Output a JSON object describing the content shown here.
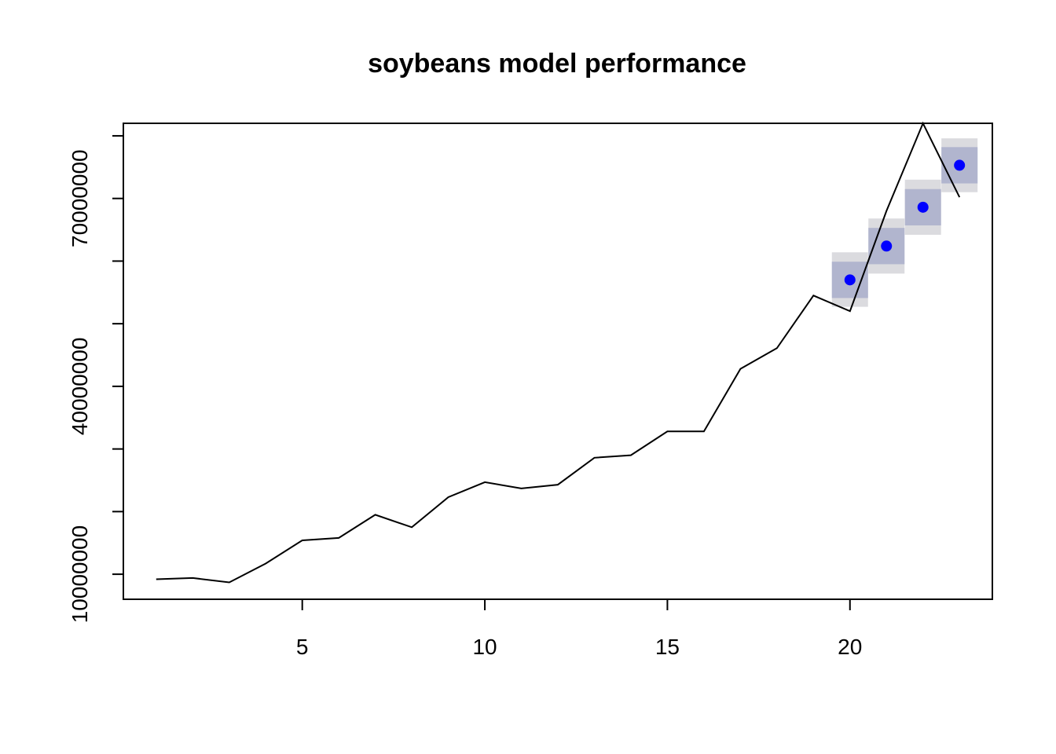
{
  "chart_data": {
    "type": "line",
    "title": "soybeans model performance",
    "xlabel": "",
    "ylabel": "",
    "xlim": [
      0.1,
      23.9
    ],
    "ylim": [
      6000000,
      82000000
    ],
    "x_ticks": [
      5,
      10,
      15,
      20
    ],
    "x_tick_labels": [
      "5",
      "10",
      "15",
      "20"
    ],
    "y_ticks": [
      10000000,
      20000000,
      30000000,
      40000000,
      50000000,
      60000000,
      70000000,
      80000000
    ],
    "y_tick_labels": [
      "10000000",
      "",
      "",
      "40000000",
      "",
      "",
      "70000000",
      ""
    ],
    "grid": false,
    "legend": "none",
    "series": [
      {
        "x": [
          1,
          2,
          3,
          4,
          5,
          6,
          7,
          8,
          9,
          10,
          11,
          12,
          13,
          14,
          15,
          16,
          17,
          18,
          19,
          20,
          21,
          22,
          23
        ],
        "values": [
          9200000,
          9400000,
          8700000,
          11700000,
          15400000,
          15800000,
          19500000,
          17500000,
          22300000,
          24700000,
          23700000,
          24300000,
          28600000,
          29000000,
          32800000,
          32800000,
          42800000,
          46100000,
          54500000,
          52000000,
          68000000,
          82000000,
          70200000
        ],
        "color": "#000000"
      }
    ],
    "forecast": {
      "x": [
        20,
        21,
        22,
        23
      ],
      "values": [
        57000000,
        62400000,
        68600000,
        75300000
      ],
      "lower80": [
        54100000,
        59500000,
        65700000,
        72400000
      ],
      "upper80": [
        59900000,
        65300000,
        71500000,
        78200000
      ],
      "lower95": [
        52700000,
        58000000,
        64200000,
        71000000
      ],
      "upper95": [
        61400000,
        66800000,
        73000000,
        79600000
      ],
      "point_color": "#0000ff",
      "band80_color": "#b1b5ce",
      "band95_color": "#dbdbdf"
    }
  }
}
